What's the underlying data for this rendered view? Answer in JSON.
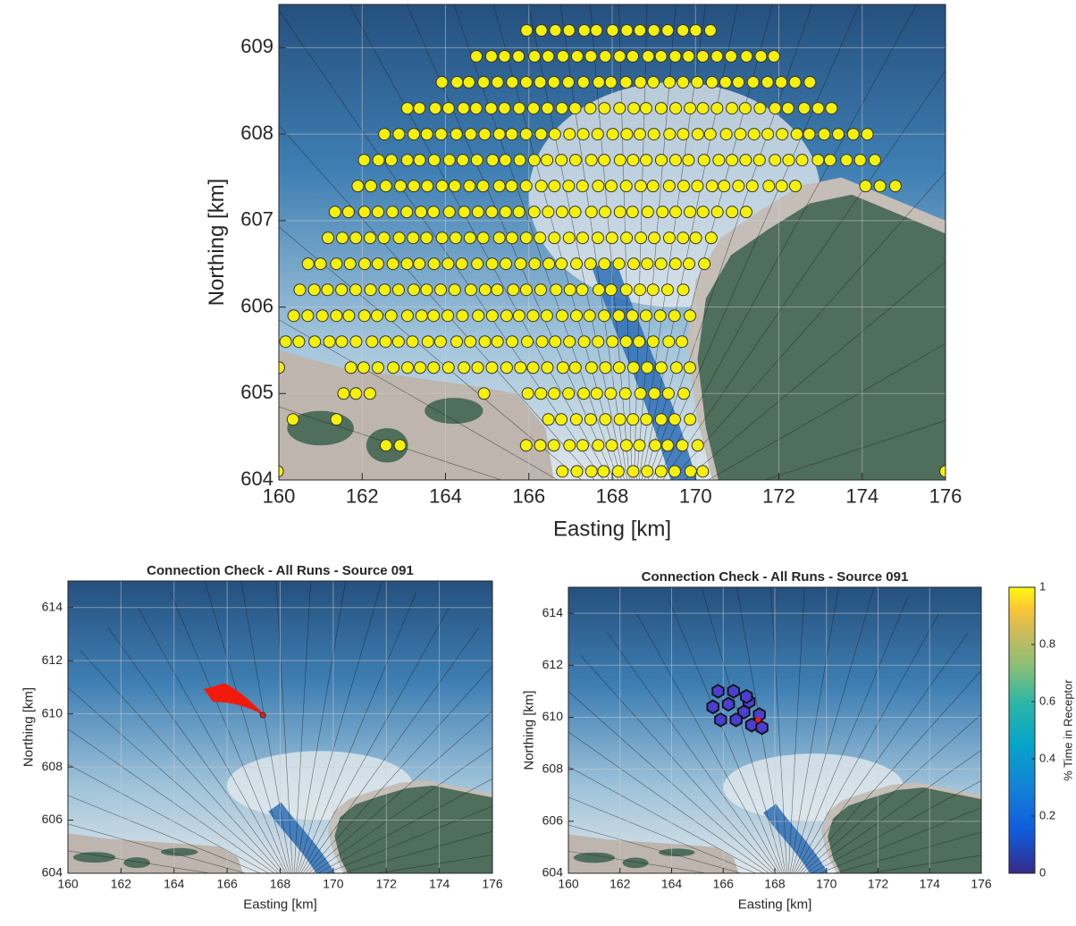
{
  "chart_data": [
    {
      "type": "map",
      "xlabel": "Easting [km]",
      "ylabel": "Northing [km]",
      "xlim": [
        160,
        176
      ],
      "ylim": [
        604,
        609.5
      ],
      "xticks": [
        160,
        162,
        164,
        166,
        168,
        170,
        172,
        174,
        176
      ],
      "yticks": [
        604,
        605,
        606,
        607,
        608,
        609
      ],
      "grid": true,
      "markers": "receptors"
    },
    {
      "type": "map",
      "title": "Connection Check - All Runs - Source 091",
      "xlabel": "Easting [km]",
      "ylabel": "Northing [km]",
      "xlim": [
        160,
        176
      ],
      "ylim": [
        604,
        615
      ],
      "xticks": [
        160,
        162,
        164,
        166,
        168,
        170,
        172,
        174,
        176
      ],
      "yticks": [
        604,
        606,
        608,
        610,
        612,
        614
      ],
      "grid": true,
      "markers": "tracks"
    },
    {
      "type": "map",
      "title": "Connection Check - All Runs - Source 091",
      "xlabel": "Easting [km]",
      "ylabel": "Northing [km]",
      "xlim": [
        160,
        176
      ],
      "ylim": [
        604,
        615
      ],
      "xticks": [
        160,
        162,
        164,
        166,
        168,
        170,
        172,
        174,
        176
      ],
      "yticks": [
        604,
        606,
        608,
        610,
        612,
        614
      ],
      "grid": true,
      "markers": "cells",
      "colorbar": {
        "label": "% Time in Receptor",
        "lim": [
          0,
          1
        ],
        "ticks": [
          0,
          0.2,
          0.4,
          0.6,
          0.8,
          1
        ]
      }
    }
  ]
}
